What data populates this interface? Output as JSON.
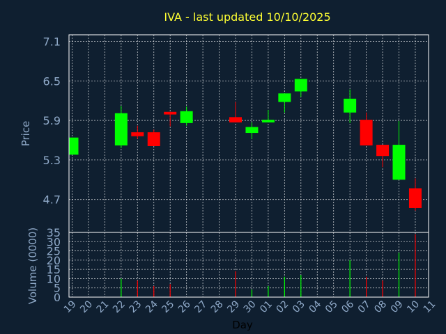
{
  "chart_data": {
    "type": "candlestick",
    "title": "IVA - last updated 10/10/2025",
    "xlabel": "Day",
    "x_ticks": [
      "19",
      "20",
      "21",
      "22",
      "23",
      "24",
      "25",
      "26",
      "27",
      "28",
      "29",
      "30",
      "01",
      "02",
      "03",
      "04",
      "05",
      "06",
      "07",
      "08",
      "09",
      "10",
      "11"
    ],
    "price_panel": {
      "ylabel": "Price",
      "ylim": [
        4.2,
        7.2
      ],
      "y_ticks": [
        "7.1",
        "6.5",
        "5.9",
        "5.3",
        "4.7"
      ],
      "y_tick_values": [
        7.1,
        6.5,
        5.9,
        5.3,
        4.7
      ],
      "candles": [
        {
          "day": "19",
          "open": 5.38,
          "close": 5.64,
          "high": 5.64,
          "low": 5.38
        },
        {
          "day": "22",
          "open": 5.52,
          "close": 6.01,
          "high": 6.12,
          "low": 5.48
        },
        {
          "day": "23",
          "open": 5.72,
          "close": 5.66,
          "high": 5.82,
          "low": 5.62
        },
        {
          "day": "24",
          "open": 5.72,
          "close": 5.51,
          "high": 5.76,
          "low": 5.51
        },
        {
          "day": "25",
          "open": 6.03,
          "close": 5.99,
          "high": 6.03,
          "low": 5.81
        },
        {
          "day": "26",
          "open": 5.86,
          "close": 6.04,
          "high": 6.11,
          "low": 5.82
        },
        {
          "day": "29",
          "open": 5.95,
          "close": 5.87,
          "high": 6.18,
          "low": 5.87
        },
        {
          "day": "30",
          "open": 5.71,
          "close": 5.8,
          "high": 5.87,
          "low": 5.62
        },
        {
          "day": "01",
          "open": 5.87,
          "close": 5.91,
          "high": 6.06,
          "low": 5.87
        },
        {
          "day": "02",
          "open": 6.18,
          "close": 6.31,
          "high": 6.31,
          "low": 6.02
        },
        {
          "day": "03",
          "open": 6.34,
          "close": 6.53,
          "high": 6.53,
          "low": 6.26
        },
        {
          "day": "06",
          "open": 6.02,
          "close": 6.23,
          "high": 6.37,
          "low": 5.86
        },
        {
          "day": "07",
          "open": 5.91,
          "close": 5.52,
          "high": 6.02,
          "low": 5.52
        },
        {
          "day": "08",
          "open": 5.53,
          "close": 5.36,
          "high": 5.53,
          "low": 5.19
        },
        {
          "day": "09",
          "open": 5.0,
          "close": 5.53,
          "high": 5.89,
          "low": 5.0
        },
        {
          "day": "10",
          "open": 4.87,
          "close": 4.57,
          "high": 5.02,
          "low": 4.53
        }
      ]
    },
    "volume_panel": {
      "ylabel": "Volume (0000)",
      "ylim": [
        0,
        35
      ],
      "y_ticks": [
        "35",
        "30",
        "25",
        "20",
        "15",
        "10",
        "5",
        "0"
      ],
      "y_tick_values": [
        35,
        30,
        25,
        20,
        15,
        10,
        5,
        0
      ],
      "bars": [
        {
          "day": "22",
          "value": 10,
          "color": "#00ff00"
        },
        {
          "day": "23",
          "value": 9,
          "color": "#ff0000"
        },
        {
          "day": "24",
          "value": 6,
          "color": "#ff0000"
        },
        {
          "day": "25",
          "value": 7,
          "color": "#ff0000"
        },
        {
          "day": "29",
          "value": 14,
          "color": "#ff0000"
        },
        {
          "day": "30",
          "value": 4,
          "color": "#00ff00"
        },
        {
          "day": "01",
          "value": 6,
          "color": "#00ff00"
        },
        {
          "day": "02",
          "value": 11,
          "color": "#00ff00"
        },
        {
          "day": "03",
          "value": 12,
          "color": "#00ff00"
        },
        {
          "day": "06",
          "value": 20,
          "color": "#00ff00"
        },
        {
          "day": "07",
          "value": 11,
          "color": "#ff0000"
        },
        {
          "day": "08",
          "value": 9,
          "color": "#ff0000"
        },
        {
          "day": "09",
          "value": 24,
          "color": "#00ff00"
        },
        {
          "day": "10",
          "value": 34,
          "color": "#ff0000"
        }
      ]
    },
    "grid": true,
    "colors": {
      "background": "#0f1f30",
      "up": "#00ff00",
      "down": "#ff0000",
      "title": "#ffff33",
      "axis_text": "#8fa9c8",
      "grid": "#ffffff"
    }
  }
}
